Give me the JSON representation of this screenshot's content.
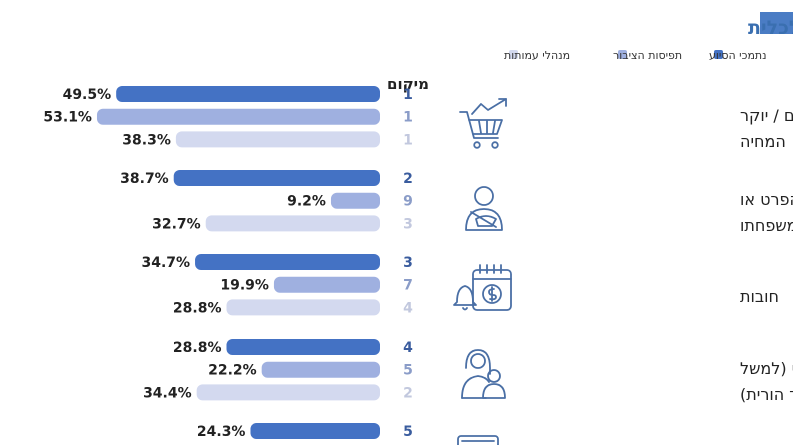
{
  "colors": {
    "title": "#3a6fb0",
    "accent_box": "#4a7cc4",
    "text": "#222222",
    "icon": "#4a6fa5"
  },
  "chart_data": {
    "type": "bar",
    "orientation": "horizontal",
    "title": "הגורמים למצוקה כלכלית",
    "rank_header": "מיקום",
    "legend": {
      "placement": "top-right",
      "entries": [
        {
          "name": "נתמכי הסיוע",
          "color": "#4472c4"
        },
        {
          "name": "תפיסות הציבור",
          "color": "#9fb0e0"
        },
        {
          "name": "מנהלי עמותות",
          "color": "#d3d9ef"
        }
      ]
    },
    "xlim": [
      0,
      55
    ],
    "categories": [
      {
        "lines": [
          "עליית מחירים / יוקר",
          "המחיה"
        ],
        "icon": "shopping-cart-icon"
      },
      {
        "lines": [
          "מחלה / נכות של הפרט או",
          "של אדם אחר במשפחתו"
        ],
        "icon": "injured-person-icon"
      },
      {
        "lines": [
          "חובות"
        ],
        "icon": "debt-calendar-icon"
      },
      {
        "lines": [
          "מבנה משפחתי (למשל",
          "משפחה חד הורית)"
        ],
        "icon": "single-parent-icon"
      },
      {
        "lines": [
          ""
        ],
        "icon": "money-icon"
      }
    ],
    "series": [
      {
        "name": "נתמכי הסיוע",
        "color": "#4472c4",
        "values": [
          49.5,
          38.7,
          34.7,
          28.8,
          24.3
        ],
        "labels": [
          "49.5%",
          "38.7%",
          "34.7%",
          "28.8%",
          "24.3%"
        ],
        "ranks": [
          "1",
          "2",
          "3",
          "4",
          "5"
        ]
      },
      {
        "name": "תפיסות הציבור",
        "color": "#9fb0e0",
        "values": [
          53.1,
          9.2,
          19.9,
          22.2,
          null
        ],
        "labels": [
          "53.1%",
          "9.2%",
          "19.9%",
          "22.2%",
          ""
        ],
        "ranks": [
          "1",
          "9",
          "7",
          "5",
          ""
        ]
      },
      {
        "name": "מנהלי עמותות",
        "color": "#d3d9ef",
        "values": [
          38.3,
          32.7,
          28.8,
          34.4,
          null
        ],
        "labels": [
          "38.3%",
          "32.7%",
          "28.8%",
          "34.4%",
          ""
        ],
        "ranks": [
          "1",
          "3",
          "4",
          "2",
          ""
        ]
      }
    ]
  }
}
